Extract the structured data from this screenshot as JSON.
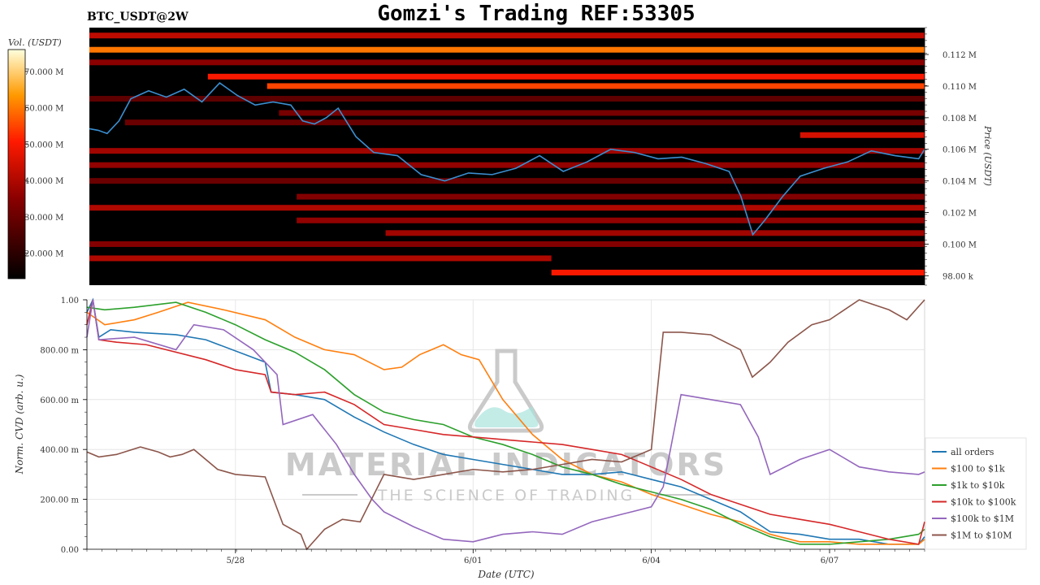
{
  "header": {
    "symbol": "BTC_USDT@2W",
    "title": "Gomzi's Trading REF:53305"
  },
  "colors": {
    "heatmap_bg": "#000000",
    "price_line": "#3b8fd1",
    "watermark": "#bfbfbf",
    "watermark_flask": "#9fe0d8"
  },
  "watermark": {
    "line1": "MATERIAL INDICATORS",
    "line2": "THE SCIENCE OF TRADING"
  },
  "chart_data": [
    {
      "type": "heatmap",
      "name": "orderbook-heatmap",
      "colorbar": {
        "label": "Vol. (USDT)",
        "ticks": [
          "20.000 M",
          "30.000 M",
          "40.000 M",
          "50.000 M",
          "60.000 M",
          "70.000 M"
        ],
        "tick_values": [
          20,
          30,
          40,
          50,
          60,
          70
        ],
        "range": [
          13,
          76
        ]
      },
      "ylabel": "Price (USDT)",
      "y_ticks": [
        "98.00 k",
        "0.100 M",
        "0.102 M",
        "0.104 M",
        "0.106 M",
        "0.108 M",
        "0.110 M",
        "0.112 M"
      ],
      "y_tick_values": [
        98000,
        100000,
        102000,
        104000,
        106000,
        108000,
        110000,
        112000
      ],
      "ylim": [
        97400,
        113700
      ],
      "xlim": [
        0,
        14.1
      ],
      "liquidity_bands": [
        {
          "price": 113200,
          "x0": 0,
          "x1": 14.1,
          "vol": 42
        },
        {
          "price": 112300,
          "x0": 0,
          "x1": 14.1,
          "vol": 60
        },
        {
          "price": 111500,
          "x0": 0,
          "x1": 14.1,
          "vol": 35
        },
        {
          "price": 110600,
          "x0": 2.0,
          "x1": 14.1,
          "vol": 50
        },
        {
          "price": 110000,
          "x0": 3.0,
          "x1": 14.1,
          "vol": 55
        },
        {
          "price": 109200,
          "x0": 0,
          "x1": 14.1,
          "vol": 28
        },
        {
          "price": 108300,
          "x0": 3.2,
          "x1": 14.1,
          "vol": 32
        },
        {
          "price": 107700,
          "x0": 0.6,
          "x1": 14.1,
          "vol": 30
        },
        {
          "price": 106900,
          "x0": 12.0,
          "x1": 14.1,
          "vol": 45
        },
        {
          "price": 105900,
          "x0": 0,
          "x1": 14.1,
          "vol": 38
        },
        {
          "price": 105000,
          "x0": 0,
          "x1": 14.1,
          "vol": 36
        },
        {
          "price": 104000,
          "x0": 0,
          "x1": 14.1,
          "vol": 30
        },
        {
          "price": 103000,
          "x0": 3.5,
          "x1": 14.1,
          "vol": 34
        },
        {
          "price": 102300,
          "x0": 0,
          "x1": 14.1,
          "vol": 40
        },
        {
          "price": 101500,
          "x0": 3.5,
          "x1": 14.1,
          "vol": 36
        },
        {
          "price": 100700,
          "x0": 5.0,
          "x1": 14.1,
          "vol": 38
        },
        {
          "price": 100000,
          "x0": 0,
          "x1": 14.1,
          "vol": 34
        },
        {
          "price": 99100,
          "x0": 0,
          "x1": 7.8,
          "vol": 40
        },
        {
          "price": 98200,
          "x0": 7.8,
          "x1": 14.1,
          "vol": 50
        }
      ],
      "price_series": {
        "x": [
          0,
          0.15,
          0.3,
          0.5,
          0.7,
          1.0,
          1.3,
          1.6,
          1.9,
          2.2,
          2.5,
          2.8,
          3.1,
          3.4,
          3.6,
          3.8,
          4.0,
          4.2,
          4.5,
          4.8,
          5.2,
          5.6,
          6.0,
          6.4,
          6.8,
          7.2,
          7.6,
          8.0,
          8.4,
          8.8,
          9.2,
          9.6,
          10.0,
          10.4,
          10.8,
          11.0,
          11.2,
          11.4,
          11.7,
          12.0,
          12.4,
          12.8,
          13.2,
          13.6,
          14.0,
          14.1
        ],
        "y": [
          107300,
          107200,
          107000,
          107800,
          109200,
          109700,
          109300,
          109800,
          109000,
          110200,
          109400,
          108800,
          109000,
          108800,
          107800,
          107600,
          108000,
          108600,
          106800,
          105800,
          105600,
          104400,
          104000,
          104500,
          104400,
          104800,
          105600,
          104600,
          105200,
          106000,
          105800,
          105400,
          105500,
          105100,
          104600,
          103000,
          100600,
          101500,
          103000,
          104300,
          104800,
          105200,
          105900,
          105600,
          105400,
          106000
        ]
      }
    },
    {
      "type": "line",
      "name": "cvd-chart",
      "xlabel": "Date (UTC)",
      "ylabel": "Norm. CVD (arb. u.)",
      "x_ticks": [
        "5/28",
        "6/01",
        "6/04",
        "6/07"
      ],
      "x_tick_values": [
        2.5,
        6.5,
        9.5,
        12.5
      ],
      "xlim": [
        0,
        14.1
      ],
      "y_ticks": [
        "0.00",
        "200.00 m",
        "400.00 m",
        "600.00 m",
        "800.00 m",
        "1.00"
      ],
      "y_tick_values": [
        0,
        0.2,
        0.4,
        0.6,
        0.8,
        1.0
      ],
      "ylim": [
        0,
        1.0
      ],
      "legend_position": "bottom-right",
      "series": [
        {
          "name": "all orders",
          "color": "#1f77b4",
          "x": [
            0,
            0.1,
            0.2,
            0.4,
            0.8,
            1.5,
            2.0,
            3.0,
            3.1,
            3.5,
            4.0,
            4.5,
            5.0,
            5.5,
            6.0,
            6.5,
            7.0,
            7.5,
            8.0,
            8.5,
            9.0,
            9.5,
            10.0,
            10.5,
            11.0,
            11.5,
            12.0,
            12.5,
            13.0,
            13.5,
            14.0,
            14.1
          ],
          "y": [
            0.95,
            1.0,
            0.85,
            0.88,
            0.87,
            0.86,
            0.84,
            0.75,
            0.63,
            0.62,
            0.6,
            0.53,
            0.47,
            0.42,
            0.38,
            0.36,
            0.34,
            0.32,
            0.3,
            0.3,
            0.31,
            0.28,
            0.25,
            0.2,
            0.15,
            0.07,
            0.06,
            0.04,
            0.04,
            0.02,
            0.02,
            0.05
          ]
        },
        {
          "name": "$100 to $1k",
          "color": "#ff7f0e",
          "x": [
            0,
            0.3,
            0.8,
            1.2,
            1.7,
            2.3,
            3.0,
            3.5,
            4.0,
            4.5,
            5.0,
            5.3,
            5.6,
            6.0,
            6.3,
            6.6,
            7.0,
            7.5,
            8.0,
            8.5,
            9.0,
            9.5,
            10.0,
            10.5,
            11.0,
            11.5,
            12.0,
            12.5,
            13.0,
            13.5,
            14.0,
            14.1
          ],
          "y": [
            0.95,
            0.9,
            0.92,
            0.95,
            0.99,
            0.96,
            0.92,
            0.85,
            0.8,
            0.78,
            0.72,
            0.73,
            0.78,
            0.82,
            0.78,
            0.76,
            0.6,
            0.46,
            0.36,
            0.3,
            0.27,
            0.22,
            0.18,
            0.14,
            0.11,
            0.06,
            0.03,
            0.03,
            0.02,
            0.02,
            0.02,
            0.04
          ]
        },
        {
          "name": "$1k to $10k",
          "color": "#2ca02c",
          "x": [
            0,
            0.3,
            0.8,
            1.5,
            2.0,
            2.5,
            3.0,
            3.5,
            4.0,
            4.5,
            5.0,
            5.5,
            6.0,
            6.5,
            7.0,
            7.5,
            8.0,
            8.5,
            9.0,
            9.5,
            10.0,
            10.5,
            11.0,
            11.5,
            12.0,
            12.5,
            13.0,
            13.5,
            14.0,
            14.1
          ],
          "y": [
            0.97,
            0.96,
            0.97,
            0.99,
            0.95,
            0.9,
            0.84,
            0.79,
            0.72,
            0.62,
            0.55,
            0.52,
            0.5,
            0.45,
            0.42,
            0.38,
            0.33,
            0.3,
            0.26,
            0.23,
            0.2,
            0.16,
            0.1,
            0.05,
            0.02,
            0.02,
            0.03,
            0.04,
            0.06,
            0.08
          ]
        },
        {
          "name": "$10k to $100k",
          "color": "#d62728",
          "x": [
            0,
            0.1,
            0.2,
            0.5,
            1.0,
            2.0,
            2.5,
            3.0,
            3.1,
            3.5,
            4.0,
            4.5,
            5.0,
            5.5,
            6.0,
            6.5,
            7.0,
            7.5,
            8.0,
            8.5,
            9.0,
            9.5,
            10.0,
            10.5,
            11.0,
            11.5,
            12.0,
            12.5,
            13.0,
            13.5,
            14.0,
            14.1
          ],
          "y": [
            0.9,
            1.0,
            0.84,
            0.83,
            0.82,
            0.76,
            0.72,
            0.7,
            0.63,
            0.62,
            0.63,
            0.58,
            0.5,
            0.48,
            0.46,
            0.45,
            0.44,
            0.43,
            0.42,
            0.4,
            0.38,
            0.33,
            0.28,
            0.22,
            0.18,
            0.14,
            0.12,
            0.1,
            0.07,
            0.04,
            0.02,
            0.11
          ]
        },
        {
          "name": "$100k to $1M",
          "color": "#9467bd",
          "x": [
            0,
            0.1,
            0.2,
            0.8,
            1.5,
            1.8,
            2.3,
            2.8,
            3.2,
            3.3,
            3.8,
            4.2,
            4.5,
            4.8,
            5.0,
            5.5,
            6.0,
            6.5,
            7.0,
            7.5,
            8.0,
            8.5,
            9.0,
            9.5,
            9.7,
            10.0,
            10.5,
            11.0,
            11.3,
            11.5,
            12.0,
            12.5,
            13.0,
            13.5,
            14.0,
            14.1
          ],
          "y": [
            0.85,
            1.0,
            0.84,
            0.85,
            0.8,
            0.9,
            0.88,
            0.8,
            0.7,
            0.5,
            0.54,
            0.42,
            0.3,
            0.2,
            0.15,
            0.09,
            0.04,
            0.03,
            0.06,
            0.07,
            0.06,
            0.11,
            0.14,
            0.17,
            0.25,
            0.62,
            0.6,
            0.58,
            0.45,
            0.3,
            0.36,
            0.4,
            0.33,
            0.31,
            0.3,
            0.31
          ]
        },
        {
          "name": "$1M to $10M",
          "color": "#8c564b",
          "x": [
            0,
            0.2,
            0.5,
            0.9,
            1.2,
            1.4,
            1.6,
            1.8,
            2.2,
            2.5,
            3.0,
            3.3,
            3.6,
            3.7,
            4.0,
            4.3,
            4.6,
            5.0,
            5.5,
            6.0,
            6.5,
            7.0,
            7.5,
            8.0,
            8.5,
            9.0,
            9.5,
            9.7,
            10.0,
            10.5,
            11.0,
            11.2,
            11.5,
            11.8,
            12.2,
            12.5,
            13.0,
            13.5,
            13.8,
            14.1
          ],
          "y": [
            0.39,
            0.37,
            0.38,
            0.41,
            0.39,
            0.37,
            0.38,
            0.4,
            0.32,
            0.3,
            0.29,
            0.1,
            0.06,
            0.0,
            0.08,
            0.12,
            0.11,
            0.3,
            0.28,
            0.3,
            0.32,
            0.31,
            0.32,
            0.34,
            0.36,
            0.35,
            0.4,
            0.87,
            0.87,
            0.86,
            0.8,
            0.69,
            0.75,
            0.83,
            0.9,
            0.92,
            1.0,
            0.96,
            0.92,
            1.0
          ]
        }
      ]
    }
  ]
}
